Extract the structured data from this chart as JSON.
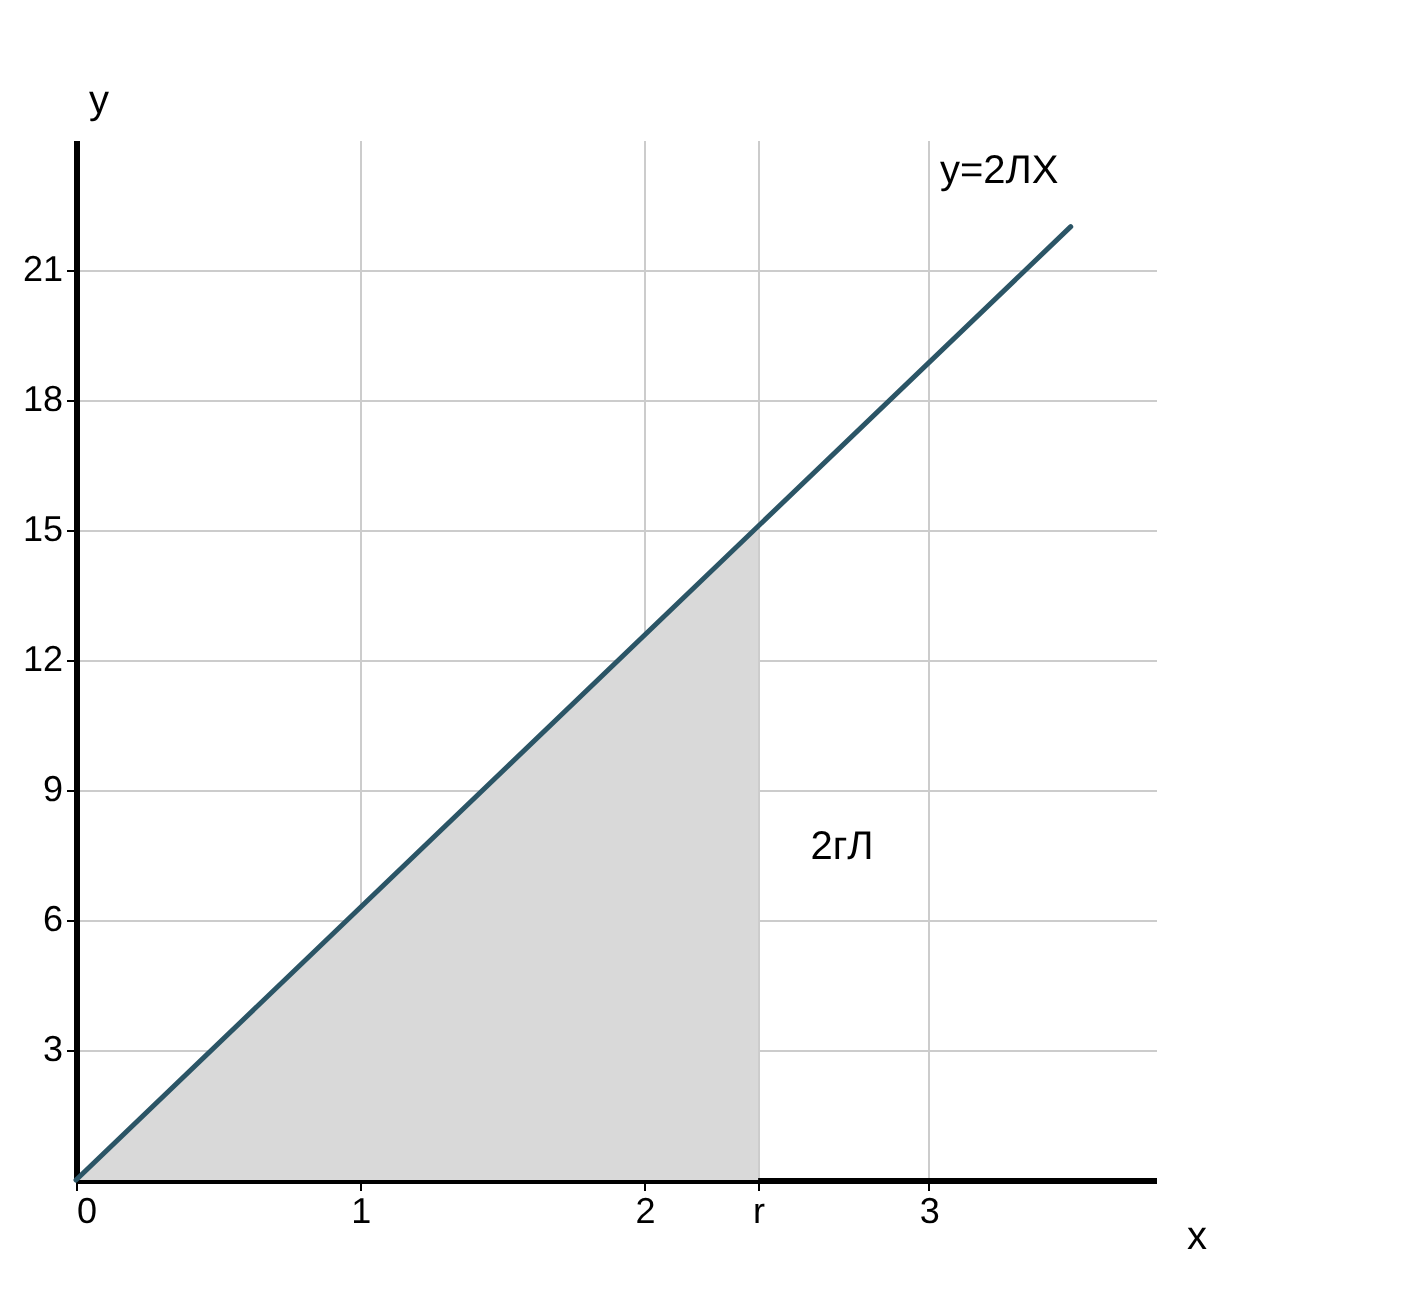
{
  "chart_data": {
    "type": "line",
    "xlabel": "x",
    "ylabel": "y",
    "xlim": [
      0,
      3.8
    ],
    "ylim": [
      0,
      24
    ],
    "xticks": [
      0,
      1,
      2,
      {
        "value": 2.4,
        "label": "r"
      },
      3
    ],
    "yticks": [
      3,
      6,
      9,
      12,
      15,
      18,
      21
    ],
    "grid": true,
    "marker": "none",
    "line_style": "solid",
    "series": [
      {
        "type": "area",
        "x": [
          0,
          2.4
        ],
        "values": [
          0,
          15.1
        ],
        "color": "#d9d9d9"
      },
      {
        "x": [
          0,
          3.5
        ],
        "values": [
          0,
          22
        ],
        "color": "#2b5566"
      }
    ],
    "annotations": [
      "y=2ЛХ",
      "2гЛ"
    ]
  }
}
